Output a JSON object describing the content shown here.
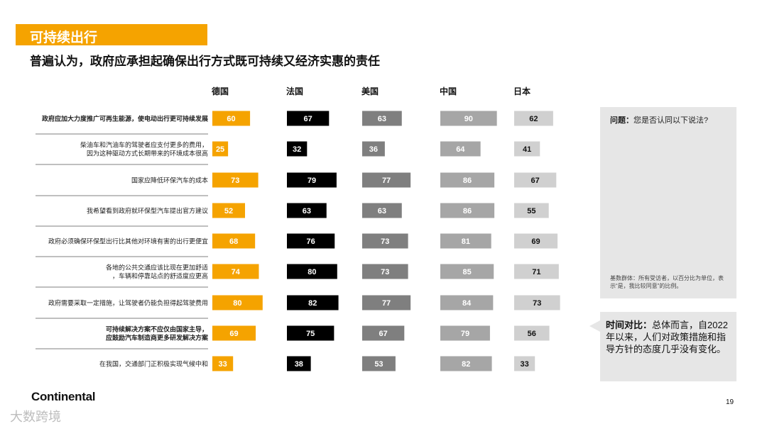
{
  "section_title": "可持续出行",
  "headline": "普遍认为，政府应承担起确保出行方式既可持续又经济实惠的责任",
  "question": {
    "label": "问题：",
    "text": "您是否认同以下说法?"
  },
  "base_note": "基数群体：所有受访者，以百分比为单位，表示“是，我比较同意”的比例。",
  "time_comparison": {
    "label": "时间对比：",
    "text": "总体而言，自2022年以来，人们对政策措施和指导方针的态度几乎没有变化。"
  },
  "logo": "Continental",
  "page_number": "19",
  "watermark": "大数跨境",
  "colors": {
    "accent": "#f5a300",
    "series": [
      "#f5a300",
      "#000000",
      "#7f7f7f",
      "#a6a6a6",
      "#d0d0d0"
    ],
    "label_text": [
      "#ffffff",
      "#ffffff",
      "#ffffff",
      "#ffffff",
      "#111111"
    ]
  },
  "chart_data": {
    "type": "bar",
    "orientation": "horizontal-small-multiples",
    "unit": "%",
    "xlim": [
      0,
      100
    ],
    "categories": [
      "政府应加大力度推广可再生能源，使电动出行更可持续发展",
      "柴油车和汽油车的驾驶者应支付更多的费用，因为这种驱动方式长期带来的环境成本很高",
      "国家应降低环保汽车的成本",
      "我希望看到政府就环保型汽车提出官方建议",
      "政府必须确保环保型出行比其他对环境有害的出行更便宜",
      "各地的公共交通应该比现在更加舒适，车辆和停靠站点的舒适度应更高",
      "政府需要采取一定措施，让驾驶者仍能负担得起驾驶费用",
      "可持续解决方案不应仅由国家主导，应鼓励汽车制造商更多研发解决方案",
      "在我国，交通部门正积极实现气候中和"
    ],
    "bold_categories": [
      0,
      7
    ],
    "series": [
      {
        "name": "德国",
        "values": [
          60,
          25,
          73,
          52,
          68,
          74,
          80,
          69,
          33
        ]
      },
      {
        "name": "法国",
        "values": [
          67,
          32,
          79,
          63,
          76,
          80,
          82,
          75,
          38
        ]
      },
      {
        "name": "美国",
        "values": [
          63,
          36,
          77,
          63,
          73,
          73,
          77,
          67,
          53
        ]
      },
      {
        "name": "中国",
        "values": [
          90,
          64,
          86,
          86,
          81,
          85,
          84,
          79,
          82
        ]
      },
      {
        "name": "日本",
        "values": [
          62,
          41,
          67,
          55,
          69,
          71,
          73,
          56,
          33
        ]
      }
    ]
  }
}
